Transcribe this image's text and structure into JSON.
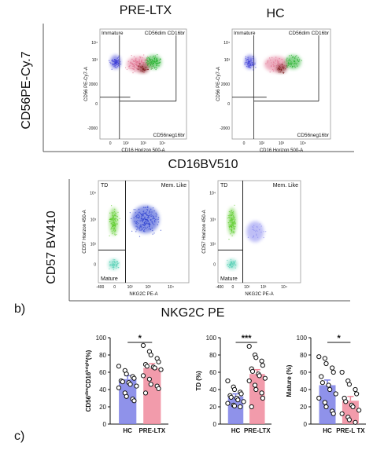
{
  "top": {
    "col_left_title": "PRE-LTX",
    "col_right_title": "HC",
    "y_axis_title": "CD56PE-Cy.7",
    "x_axis_title": "CD16BV510",
    "plot_ylabel": "CD56 PE-Cy7-A",
    "plot_xlabel": "CD16 Horizon 500-A",
    "gate_immature": "Immature",
    "gate_cd56dim": "CD56dim CD16br",
    "gate_cd56neg": "CD56neg16br",
    "y_ticks": [
      "10⁴",
      "10³",
      "2000",
      "0",
      "-2000"
    ],
    "x_ticks": [
      "0",
      "10²",
      "10³",
      "10⁴"
    ]
  },
  "middle": {
    "panel_label": "b)",
    "y_axis_title": "CD57 BV410",
    "x_axis_title": "NKG2C PE",
    "plot_ylabel": "CD57 Horizon 450-A",
    "plot_xlabel": "NKG2C PE-A",
    "gate_td": "TD",
    "gate_mem": "Mem. Like",
    "gate_mature": "Mature",
    "y_ticks": [
      "10⁴",
      "10³",
      "10²",
      "0"
    ],
    "x_ticks": [
      "-400",
      "0",
      "10²",
      "10³",
      "10⁴"
    ]
  },
  "bottom": {
    "panel_label": "c)"
  },
  "colors": {
    "bar_hc": "#7b7fe6",
    "bar_preltx": "#f08a9c",
    "dot": "#111111"
  },
  "chart_data": [
    {
      "type": "bar",
      "title": "",
      "categories": [
        "HC",
        "PRE-LTX"
      ],
      "ylabel": "CD56dimCD16bright(%)",
      "ylabel_base": "CD56",
      "ylabel_sup1": "dim",
      "ylabel_mid": "CD16",
      "ylabel_sup2": "bright",
      "ylabel_end": "(%)",
      "ylim": [
        0,
        100
      ],
      "yticks": [
        "0",
        "20",
        "40",
        "60",
        "80",
        "100"
      ],
      "significance": "*",
      "values": [
        52,
        65
      ],
      "errors": [
        4,
        5
      ],
      "points": [
        [
          67,
          62,
          58,
          55,
          53,
          50,
          49,
          48,
          46,
          44,
          42,
          36,
          32,
          29,
          27
        ],
        [
          91,
          84,
          80,
          76,
          72,
          69,
          67,
          66,
          65,
          63,
          56,
          52,
          46,
          44,
          41,
          36
        ]
      ]
    },
    {
      "type": "bar",
      "title": "",
      "categories": [
        "HC",
        "PRE-LTX"
      ],
      "ylabel": "TD (%)",
      "ylim": [
        0,
        100
      ],
      "yticks": [
        "0",
        "20",
        "40",
        "60",
        "80",
        "100"
      ],
      "significance": "***",
      "values": [
        32,
        58
      ],
      "errors": [
        3,
        5
      ],
      "points": [
        [
          50,
          43,
          40,
          37,
          35,
          33,
          31,
          30,
          28,
          26,
          24,
          22,
          21,
          20
        ],
        [
          90,
          80,
          77,
          73,
          68,
          64,
          61,
          58,
          56,
          53,
          50,
          45,
          40,
          36,
          30,
          20
        ]
      ]
    },
    {
      "type": "bar",
      "title": "",
      "categories": [
        "HC",
        "PRE-L TX"
      ],
      "ylabel": "Mature (%)",
      "ylim": [
        0,
        100
      ],
      "yticks": [
        "0",
        "20",
        "40",
        "60",
        "80",
        "100"
      ],
      "significance": "*",
      "values": [
        45,
        27
      ],
      "errors": [
        6,
        5
      ],
      "points": [
        [
          78,
          76,
          70,
          65,
          60,
          55,
          48,
          45,
          40,
          35,
          30,
          25,
          20,
          15,
          12
        ],
        [
          60,
          50,
          46,
          40,
          35,
          30,
          26,
          22,
          20,
          16,
          12,
          8,
          5,
          2
        ]
      ]
    }
  ]
}
